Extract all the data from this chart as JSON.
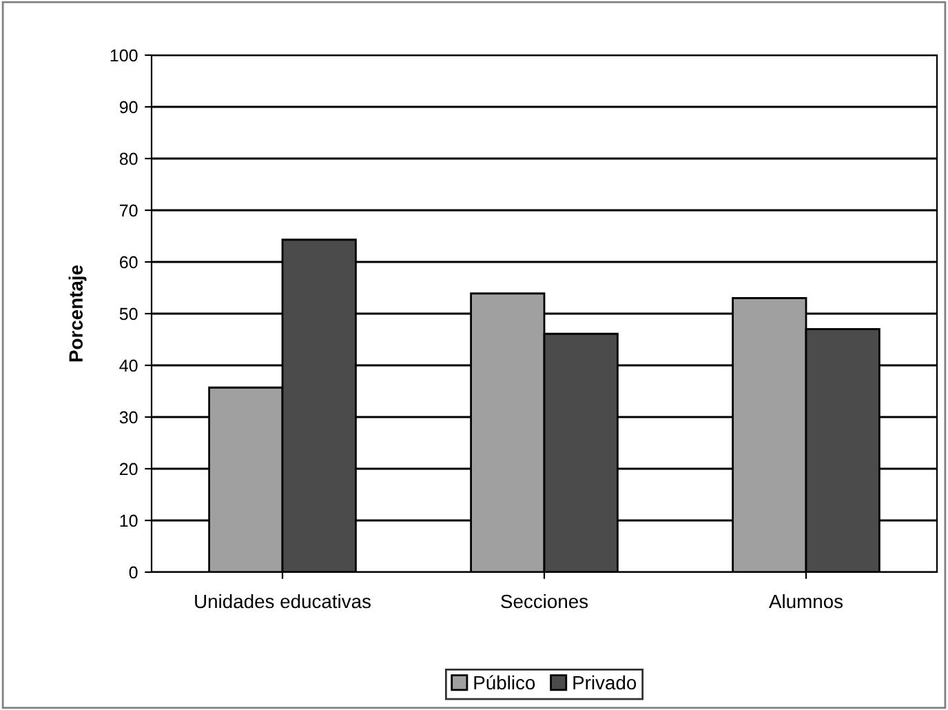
{
  "chart_data": {
    "type": "bar",
    "ylabel": "Porcentaje",
    "categories": [
      "Unidades educativas",
      "Secciones",
      "Alumnos"
    ],
    "series": [
      {
        "name": "Público",
        "color": "#a0a0a0",
        "values": [
          35.7,
          53.9,
          53.0
        ]
      },
      {
        "name": "Privado",
        "color": "#4b4b4b",
        "values": [
          64.3,
          46.1,
          47.0
        ]
      }
    ],
    "ylim": [
      0,
      100
    ],
    "yticks": [
      0,
      10,
      20,
      30,
      40,
      50,
      60,
      70,
      80,
      90,
      100
    ],
    "grid": "y",
    "legend": "bottom"
  }
}
